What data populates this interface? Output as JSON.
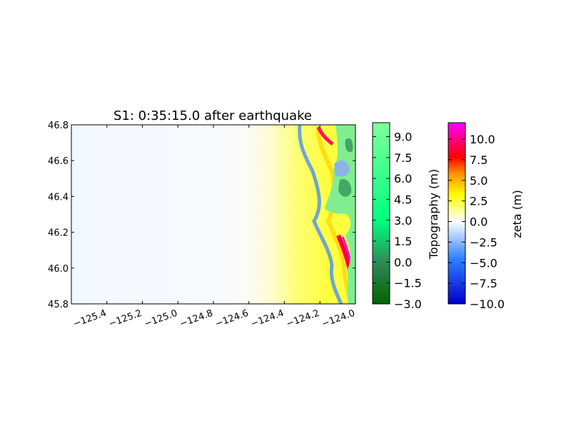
{
  "chart_data": {
    "type": "heatmap",
    "title": "S1: 0:35:15.0 after earthquake",
    "x_ticks": [
      "−125.4",
      "−125.2",
      "−125.0",
      "−124.8",
      "−124.6",
      "−124.4",
      "−124.2",
      "−124.0"
    ],
    "x_tick_values": [
      -125.4,
      -125.2,
      -125.0,
      -124.8,
      -124.6,
      -124.4,
      -124.2,
      -124.0
    ],
    "y_ticks": [
      "45.8",
      "46.0",
      "46.2",
      "46.4",
      "46.6",
      "46.8"
    ],
    "y_tick_values": [
      45.8,
      46.0,
      46.2,
      46.4,
      46.6,
      46.8
    ],
    "xlim": [
      -125.6,
      -124.0
    ],
    "ylim": [
      45.8,
      46.8
    ],
    "colorbars": [
      {
        "label": "Topography (m)",
        "ticks": [
          "9.0",
          "7.5",
          "6.0",
          "4.5",
          "3.0",
          "1.5",
          "0.0",
          "−1.5",
          "−3.0"
        ],
        "range": [
          -3.0,
          10.0
        ],
        "colors": [
          "#006400",
          "#2e8b57",
          "#00ff80",
          "#80ff9a"
        ]
      },
      {
        "label": "zeta (m)",
        "ticks": [
          "10.0",
          "7.5",
          "5.0",
          "2.5",
          "0.0",
          "−2.5",
          "−5.0",
          "−7.5",
          "−10.0"
        ],
        "range": [
          -10.0,
          12.0
        ],
        "colors": [
          "#0000cc",
          "#2f80ff",
          "#ffffff",
          "#ffff00",
          "#ff8000",
          "#ff0000",
          "#ff00ff"
        ]
      }
    ]
  }
}
